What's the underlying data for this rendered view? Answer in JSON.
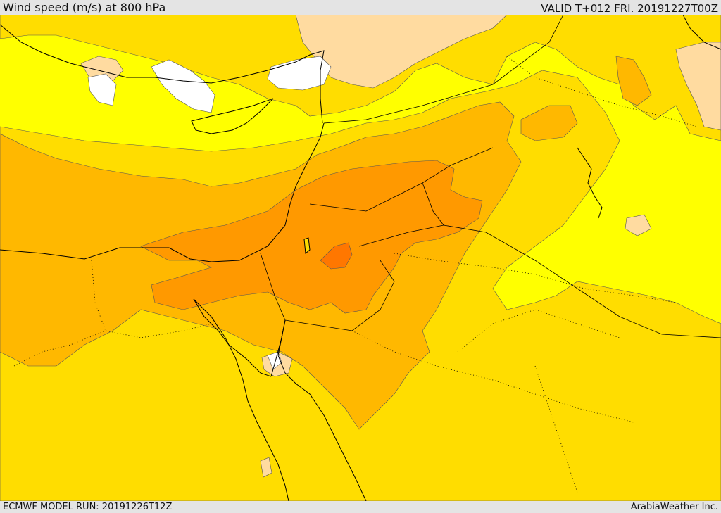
{
  "header": {
    "title": "Wind speed (m/s) at 800 hPa",
    "valid": "VALID T+012 FRI. 20191227T00Z"
  },
  "footer": {
    "model_run": "ECMWF MODEL RUN: 20191226T12Z",
    "brand": "ArabiaWeather Inc."
  },
  "colors": {
    "calm": "#ffffff",
    "light": "#ffdba0",
    "low": "#ffff00",
    "moderate": "#ffdd00",
    "fresh": "#ffb800",
    "strong": "#ff9900",
    "very_strong": "#ff7700",
    "coast": "#000000"
  }
}
